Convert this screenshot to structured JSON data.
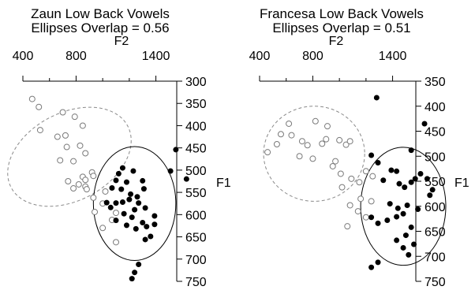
{
  "colors": {
    "ink": "#000000",
    "background": "#ffffff",
    "open_marker": "#7a7a7a",
    "dashed_ellipse": "#8a8a8a"
  },
  "chart_data": [
    {
      "type": "scatter",
      "title_line1": "Zaun Low Back Vowels",
      "title_line2": "Ellipses Overlap = 0.56",
      "xlabel": "F2",
      "ylabel": "F1",
      "x_axis_position": "top",
      "y_axis_position": "right",
      "x_inverted": false,
      "y_inverted": true,
      "xlim": [
        400,
        1800
      ],
      "ylim": [
        300,
        750
      ],
      "x_ticks": [
        400,
        800,
        1400
      ],
      "x_minor_ticks": [
        600,
        1000,
        1200,
        1600
      ],
      "y_ticks": [
        300,
        350,
        400,
        450,
        500,
        550,
        600,
        650,
        700,
        750
      ],
      "grid": false,
      "series": [
        {
          "marker": "open-circle",
          "points": [
            [
              470,
              340
            ],
            [
              520,
              358
            ],
            [
              700,
              370
            ],
            [
              530,
              410
            ],
            [
              790,
              380
            ],
            [
              720,
              422
            ],
            [
              660,
              425
            ],
            [
              850,
              400
            ],
            [
              730,
              448
            ],
            [
              830,
              445
            ],
            [
              870,
              462
            ],
            [
              680,
              478
            ],
            [
              780,
              480
            ],
            [
              920,
              505
            ],
            [
              850,
              515
            ],
            [
              930,
              513
            ],
            [
              870,
              522
            ],
            [
              740,
              525
            ],
            [
              870,
              537
            ],
            [
              820,
              532
            ],
            [
              780,
              541
            ],
            [
              880,
              543
            ],
            [
              1020,
              548
            ],
            [
              930,
              562
            ],
            [
              1000,
              575
            ],
            [
              940,
              594
            ],
            [
              1100,
              596
            ],
            [
              1070,
              612
            ],
            [
              1000,
              630
            ],
            [
              1100,
              662
            ]
          ]
        },
        {
          "marker": "filled-circle",
          "points": [
            [
              1150,
              495
            ],
            [
              1120,
              508
            ],
            [
              1230,
              502
            ],
            [
              1100,
              523
            ],
            [
              1300,
              524
            ],
            [
              1180,
              527
            ],
            [
              1070,
              540
            ],
            [
              1140,
              543
            ],
            [
              1210,
              554
            ],
            [
              1310,
              542
            ],
            [
              1260,
              560
            ],
            [
              1030,
              573
            ],
            [
              1060,
              584
            ],
            [
              1100,
              574
            ],
            [
              1150,
              572
            ],
            [
              1200,
              566
            ],
            [
              1270,
              574
            ],
            [
              1320,
              585
            ],
            [
              1240,
              589
            ],
            [
              1160,
              598
            ],
            [
              1220,
              606
            ],
            [
              1100,
              613
            ],
            [
              1180,
              624
            ],
            [
              1300,
              618
            ],
            [
              1250,
              632
            ],
            [
              1330,
              627
            ],
            [
              1360,
              649
            ],
            [
              1320,
              656
            ],
            [
              1390,
              622
            ],
            [
              1390,
              603
            ],
            [
              1550,
              454
            ],
            [
              1510,
              502
            ],
            [
              1630,
              520
            ],
            [
              1270,
              712
            ],
            [
              1240,
              730
            ],
            [
              1220,
              744
            ]
          ]
        }
      ],
      "ellipses": [
        {
          "style": "dashed",
          "cx": 750,
          "cy": 470,
          "rx": 330,
          "ry": 148,
          "rotation_deg": 62
        },
        {
          "style": "solid",
          "cx": 1240,
          "cy": 575,
          "rx": 310,
          "ry": 128,
          "rotation_deg": 0
        }
      ]
    },
    {
      "type": "scatter",
      "title_line1": "Francesa Low Back Vowels",
      "title_line2": "Ellipses Overlap = 0.51",
      "xlabel": "F2",
      "ylabel": "F1",
      "x_axis_position": "top",
      "y_axis_position": "right",
      "x_inverted": false,
      "y_inverted": true,
      "xlim": [
        400,
        1800
      ],
      "ylim": [
        350,
        750
      ],
      "x_ticks": [
        400,
        800,
        1400
      ],
      "x_minor_ticks": [
        600,
        1000,
        1200,
        1600
      ],
      "y_ticks": [
        350,
        400,
        450,
        500,
        550,
        600,
        650,
        700,
        750
      ],
      "grid": false,
      "series": [
        {
          "marker": "open-circle",
          "points": [
            [
              460,
              492
            ],
            [
              530,
              476
            ],
            [
              560,
              456
            ],
            [
              620,
              435
            ],
            [
              640,
              458
            ],
            [
              720,
              470
            ],
            [
              760,
              478
            ],
            [
              700,
              500
            ],
            [
              800,
              505
            ],
            [
              900,
              466
            ],
            [
              910,
              440
            ],
            [
              870,
              475
            ],
            [
              1000,
              468
            ],
            [
              970,
              510
            ],
            [
              1050,
              477
            ],
            [
              1080,
              470
            ],
            [
              820,
              430
            ],
            [
              950,
              520
            ],
            [
              1010,
              535
            ],
            [
              1090,
              545
            ],
            [
              1150,
              552
            ],
            [
              1200,
              530
            ],
            [
              1250,
              540
            ],
            [
              1020,
              562
            ],
            [
              1080,
              598
            ],
            [
              1140,
              610
            ],
            [
              1200,
              622
            ],
            [
              1160,
              585
            ],
            [
              1060,
              640
            ],
            [
              1240,
              590
            ]
          ]
        },
        {
          "marker": "filled-circle",
          "points": [
            [
              1280,
              383
            ],
            [
              1640,
              435
            ],
            [
              1540,
              488
            ],
            [
              1240,
              498
            ],
            [
              1290,
              513
            ],
            [
              1390,
              528
            ],
            [
              1430,
              530
            ],
            [
              1330,
              548
            ],
            [
              1450,
              555
            ],
            [
              1490,
              562
            ],
            [
              1540,
              552
            ],
            [
              1570,
              545
            ],
            [
              1610,
              535
            ],
            [
              1660,
              545
            ],
            [
              1700,
              567
            ],
            [
              1680,
              578
            ],
            [
              1380,
              595
            ],
            [
              1440,
              604
            ],
            [
              1510,
              598
            ],
            [
              1590,
              606
            ],
            [
              1240,
              622
            ],
            [
              1290,
              634
            ],
            [
              1360,
              628
            ],
            [
              1430,
              621
            ],
            [
              1480,
              615
            ],
            [
              1540,
              642
            ],
            [
              1500,
              658
            ],
            [
              1560,
              676
            ],
            [
              1430,
              668
            ],
            [
              1480,
              683
            ],
            [
              1520,
              697
            ],
            [
              1240,
              722
            ],
            [
              1290,
              712
            ]
          ]
        }
      ],
      "ellipses": [
        {
          "style": "dashed",
          "cx": 810,
          "cy": 495,
          "rx": 380,
          "ry": 95,
          "rotation_deg": 0
        },
        {
          "style": "solid",
          "cx": 1480,
          "cy": 600,
          "rx": 320,
          "ry": 118,
          "rotation_deg": 0
        }
      ]
    }
  ]
}
